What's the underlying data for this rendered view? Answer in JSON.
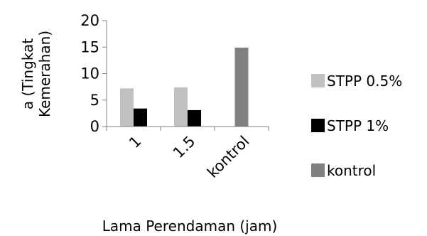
{
  "chart_data": {
    "type": "bar",
    "categories": [
      "1",
      "1.5",
      "kontrol"
    ],
    "series": [
      {
        "name": "STPP 0.5%",
        "values": [
          7.2,
          7.4,
          null
        ],
        "color": "#c0c0c0"
      },
      {
        "name": "STPP 1%",
        "values": [
          3.4,
          3.1,
          null
        ],
        "color": "#000000"
      },
      {
        "name": "kontrol",
        "values": [
          null,
          null,
          14.9
        ],
        "color": "#808080"
      }
    ],
    "title": "",
    "xlabel": "Lama Perendaman (jam)",
    "ylabel_lines": [
      "a (Tingkat",
      "Kemerahan)"
    ],
    "ylim": [
      0,
      20
    ],
    "yticks": [
      "0",
      "5",
      "10",
      "15",
      "20"
    ],
    "grid": false,
    "legend_position": "right"
  }
}
